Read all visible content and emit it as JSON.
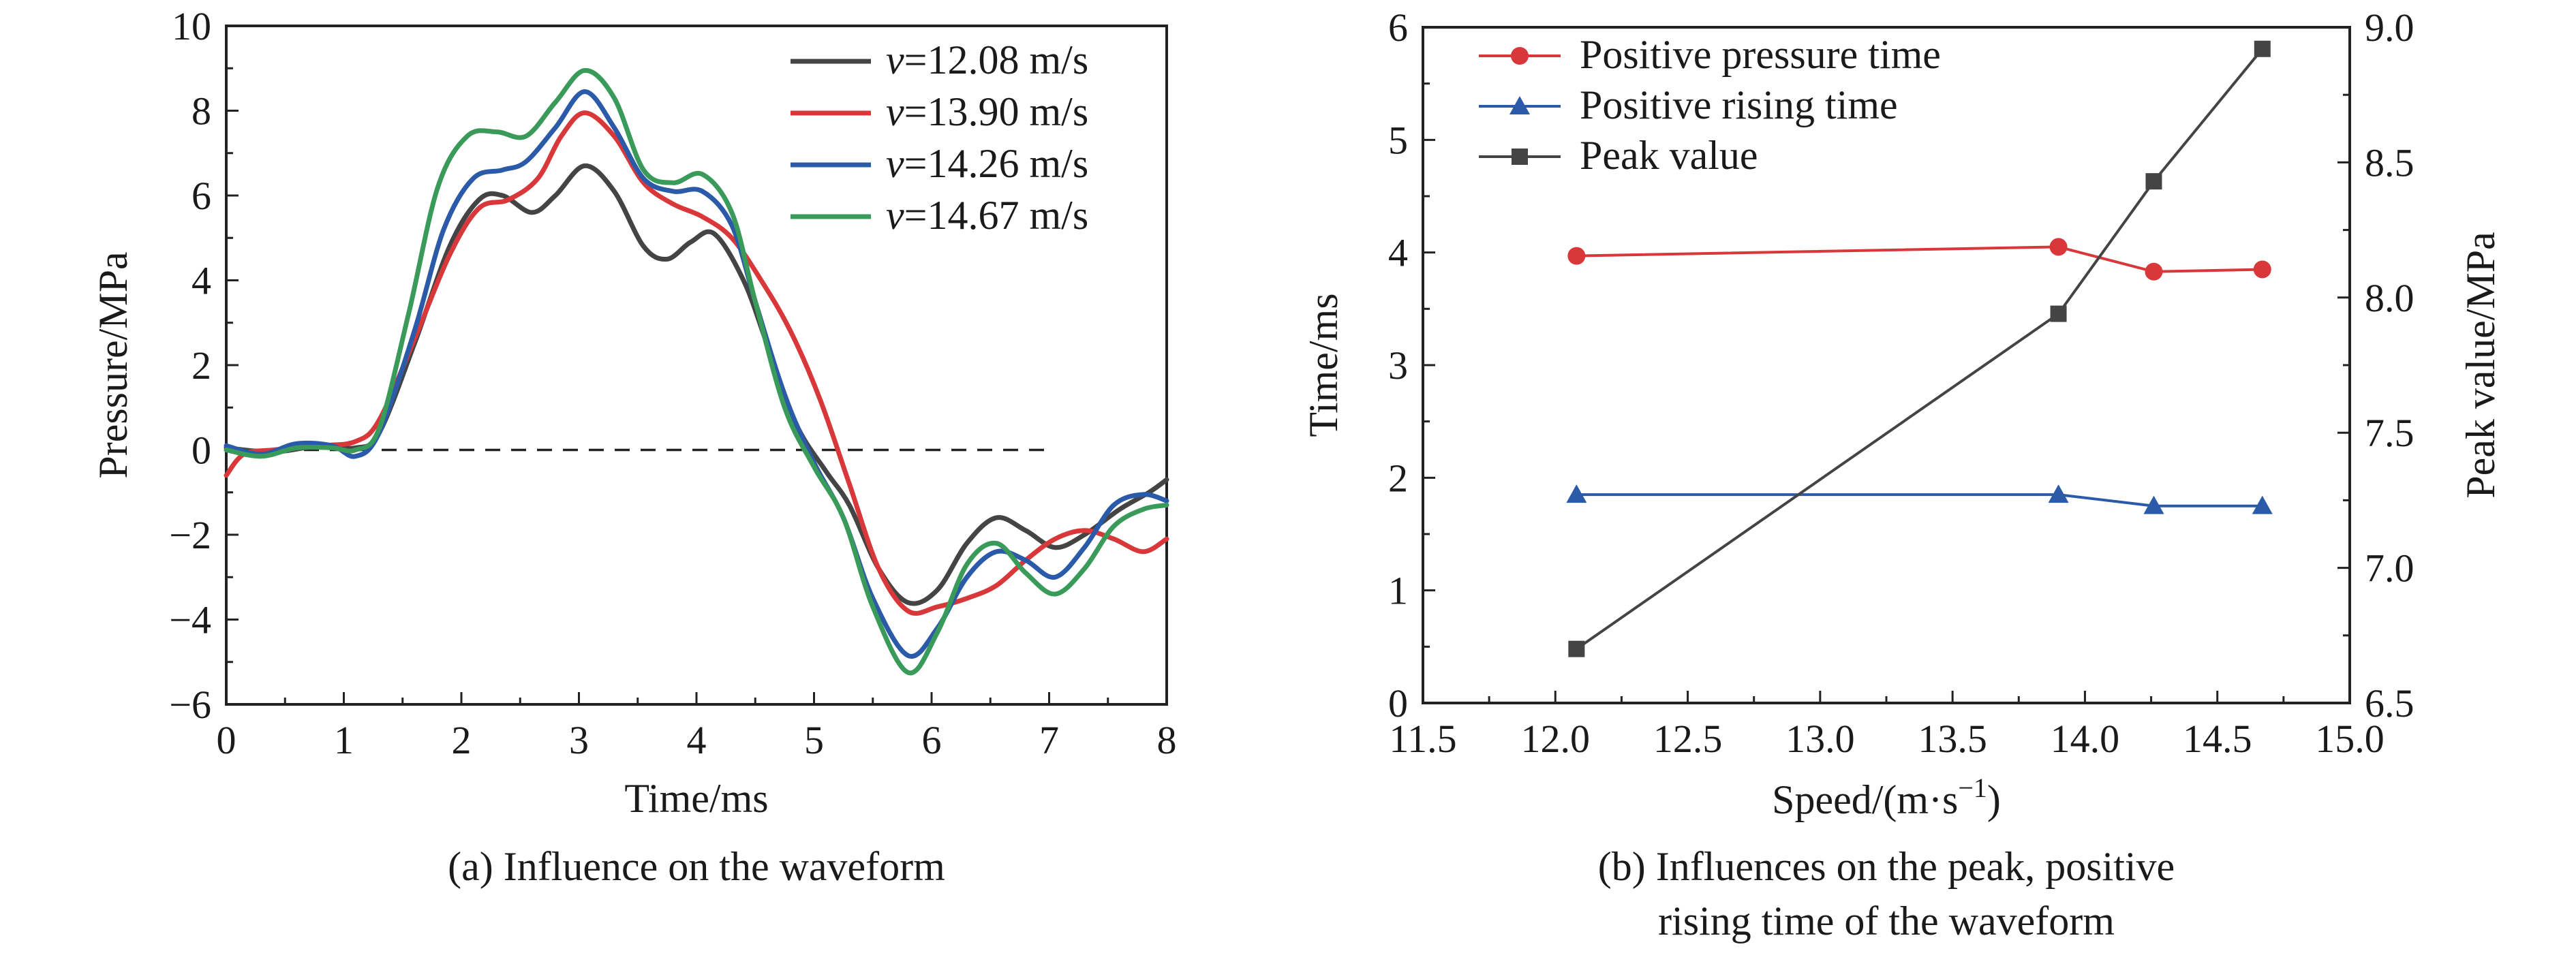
{
  "chart_data": [
    {
      "type": "line",
      "caption": "(a) Influence on the waveform",
      "xlabel": "Time/ms",
      "ylabel": "Pressure/MPa",
      "xlim": [
        0,
        8
      ],
      "ylim": [
        -6,
        10
      ],
      "xticks": [
        "0",
        "1",
        "2",
        "3",
        "4",
        "5",
        "6",
        "7",
        "8"
      ],
      "yticks": [
        "−6",
        "−4",
        "−2",
        "0",
        "2",
        "4",
        "6",
        "8",
        "10"
      ],
      "legend_position": "top-right",
      "grid": false,
      "reference_line": {
        "y": 0,
        "x_from": 0,
        "x_to": 7,
        "style": "dashed"
      },
      "series": [
        {
          "name_prefix": "v",
          "name": "=12.08 m/s",
          "color": "#444444",
          "points": [
            [
              0,
              0.05
            ],
            [
              0.4,
              -0.05
            ],
            [
              0.8,
              0.1
            ],
            [
              1.1,
              0.05
            ],
            [
              1.3,
              0.4
            ],
            [
              1.6,
              2.5
            ],
            [
              1.9,
              4.8
            ],
            [
              2.15,
              5.9
            ],
            [
              2.35,
              6.0
            ],
            [
              2.6,
              5.6
            ],
            [
              2.8,
              6.0
            ],
            [
              3.05,
              6.7
            ],
            [
              3.3,
              6.1
            ],
            [
              3.55,
              4.8
            ],
            [
              3.75,
              4.5
            ],
            [
              3.95,
              4.9
            ],
            [
              4.15,
              5.1
            ],
            [
              4.4,
              4.0
            ],
            [
              4.6,
              2.5
            ],
            [
              4.85,
              0.6
            ],
            [
              5.1,
              -0.5
            ],
            [
              5.3,
              -1.3
            ],
            [
              5.55,
              -2.8
            ],
            [
              5.8,
              -3.6
            ],
            [
              6.05,
              -3.3
            ],
            [
              6.3,
              -2.2
            ],
            [
              6.55,
              -1.6
            ],
            [
              6.8,
              -1.9
            ],
            [
              7.05,
              -2.3
            ],
            [
              7.3,
              -2.0
            ],
            [
              7.6,
              -1.4
            ],
            [
              7.85,
              -1.0
            ],
            [
              8,
              -0.7
            ]
          ]
        },
        {
          "name_prefix": "v",
          "name": "=13.90 m/s",
          "color": "#d9383a",
          "points": [
            [
              0,
              -0.6
            ],
            [
              0.15,
              -0.1
            ],
            [
              0.4,
              0.0
            ],
            [
              0.8,
              0.1
            ],
            [
              1.1,
              0.2
            ],
            [
              1.3,
              0.7
            ],
            [
              1.6,
              2.6
            ],
            [
              1.9,
              4.6
            ],
            [
              2.15,
              5.7
            ],
            [
              2.4,
              5.9
            ],
            [
              2.65,
              6.4
            ],
            [
              2.85,
              7.4
            ],
            [
              3.05,
              7.95
            ],
            [
              3.3,
              7.4
            ],
            [
              3.55,
              6.3
            ],
            [
              3.8,
              5.8
            ],
            [
              4.05,
              5.5
            ],
            [
              4.3,
              5.0
            ],
            [
              4.55,
              4.0
            ],
            [
              4.8,
              2.8
            ],
            [
              5.05,
              1.2
            ],
            [
              5.3,
              -0.8
            ],
            [
              5.55,
              -2.8
            ],
            [
              5.8,
              -3.8
            ],
            [
              6.05,
              -3.7
            ],
            [
              6.3,
              -3.5
            ],
            [
              6.55,
              -3.2
            ],
            [
              6.8,
              -2.6
            ],
            [
              7.05,
              -2.1
            ],
            [
              7.3,
              -1.9
            ],
            [
              7.55,
              -2.1
            ],
            [
              7.8,
              -2.4
            ],
            [
              8,
              -2.1
            ]
          ]
        },
        {
          "name_prefix": "v",
          "name": "=14.26 m/s",
          "color": "#2a5aa8",
          "points": [
            [
              0,
              0.1
            ],
            [
              0.3,
              -0.1
            ],
            [
              0.6,
              0.15
            ],
            [
              0.9,
              0.1
            ],
            [
              1.1,
              -0.15
            ],
            [
              1.3,
              0.4
            ],
            [
              1.6,
              2.8
            ],
            [
              1.85,
              5.2
            ],
            [
              2.1,
              6.4
            ],
            [
              2.35,
              6.6
            ],
            [
              2.55,
              6.8
            ],
            [
              2.8,
              7.6
            ],
            [
              3.05,
              8.45
            ],
            [
              3.3,
              7.6
            ],
            [
              3.55,
              6.4
            ],
            [
              3.8,
              6.1
            ],
            [
              4.05,
              6.1
            ],
            [
              4.3,
              5.3
            ],
            [
              4.5,
              3.5
            ],
            [
              4.75,
              1.3
            ],
            [
              5.0,
              -0.3
            ],
            [
              5.25,
              -1.6
            ],
            [
              5.5,
              -3.5
            ],
            [
              5.8,
              -4.85
            ],
            [
              6.05,
              -4.2
            ],
            [
              6.3,
              -3.0
            ],
            [
              6.55,
              -2.4
            ],
            [
              6.8,
              -2.6
            ],
            [
              7.05,
              -3.0
            ],
            [
              7.3,
              -2.3
            ],
            [
              7.55,
              -1.3
            ],
            [
              7.8,
              -1.05
            ],
            [
              8,
              -1.2
            ]
          ]
        },
        {
          "name_prefix": "v",
          "name": "=14.67 m/s",
          "color": "#3a9a5a",
          "points": [
            [
              0,
              0.0
            ],
            [
              0.3,
              -0.15
            ],
            [
              0.6,
              0.05
            ],
            [
              0.9,
              0.05
            ],
            [
              1.1,
              0.0
            ],
            [
              1.3,
              0.5
            ],
            [
              1.55,
              3.2
            ],
            [
              1.8,
              6.2
            ],
            [
              2.05,
              7.4
            ],
            [
              2.3,
              7.5
            ],
            [
              2.55,
              7.4
            ],
            [
              2.8,
              8.2
            ],
            [
              3.05,
              8.95
            ],
            [
              3.3,
              8.3
            ],
            [
              3.55,
              6.6
            ],
            [
              3.8,
              6.3
            ],
            [
              4.05,
              6.5
            ],
            [
              4.3,
              5.6
            ],
            [
              4.5,
              3.5
            ],
            [
              4.75,
              1.0
            ],
            [
              5.0,
              -0.4
            ],
            [
              5.25,
              -1.6
            ],
            [
              5.5,
              -3.7
            ],
            [
              5.8,
              -5.25
            ],
            [
              6.05,
              -4.3
            ],
            [
              6.3,
              -2.7
            ],
            [
              6.55,
              -2.2
            ],
            [
              6.8,
              -2.9
            ],
            [
              7.05,
              -3.4
            ],
            [
              7.3,
              -2.8
            ],
            [
              7.55,
              -1.8
            ],
            [
              7.8,
              -1.4
            ],
            [
              8,
              -1.3
            ]
          ]
        }
      ]
    },
    {
      "type": "line",
      "caption_lines": [
        "(b) Influences on the peak, positive",
        "rising time of the waveform"
      ],
      "xlabel": "Speed/(m·s",
      "xlabel_sup": "−1",
      "xlabel_end": ")",
      "ylabel_left": "Time/ms",
      "ylabel_right": "Peak value/MPa",
      "xlim": [
        11.5,
        15.0
      ],
      "ylim_left": [
        0,
        6
      ],
      "ylim_right": [
        6.5,
        9.0
      ],
      "xticks": [
        "11.5",
        "12.0",
        "12.5",
        "13.0",
        "13.5",
        "14.0",
        "14.5",
        "15.0"
      ],
      "yticks_left": [
        "0",
        "1",
        "2",
        "3",
        "4",
        "5",
        "6"
      ],
      "yticks_right": [
        "6.5",
        "7.0",
        "7.5",
        "8.0",
        "8.5",
        "9.0"
      ],
      "legend_position": "top-left",
      "grid": false,
      "x": [
        12.08,
        13.9,
        14.26,
        14.67
      ],
      "series": [
        {
          "name": "Positive pressure time",
          "axis": "left",
          "marker": "circle",
          "color": "#d9383a",
          "values": [
            3.97,
            4.05,
            3.83,
            3.85
          ]
        },
        {
          "name": "Positive rising time",
          "axis": "left",
          "marker": "triangle",
          "color": "#2a5aa8",
          "values": [
            1.85,
            1.85,
            1.75,
            1.75
          ]
        },
        {
          "name": "Peak value",
          "axis": "right",
          "marker": "square",
          "color": "#444444",
          "values": [
            6.7,
            7.94,
            8.43,
            8.92
          ]
        }
      ]
    }
  ]
}
